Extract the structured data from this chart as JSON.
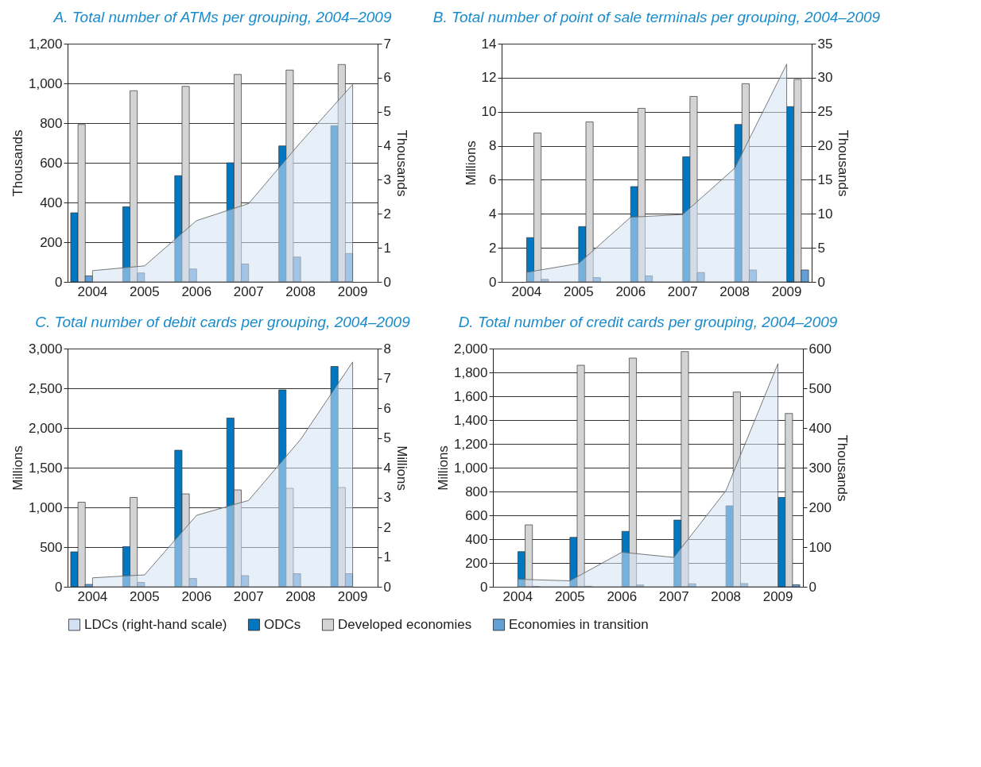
{
  "chart_data": [
    {
      "type": "bar",
      "title": "A. Total number of ATMs per grouping, 2004–2009",
      "categories": [
        "2004",
        "2005",
        "2006",
        "2007",
        "2008",
        "2009"
      ],
      "ylabel": "Thousands",
      "y2label": "Thousands",
      "ylim": [
        0,
        1200
      ],
      "yticks": [
        0,
        200,
        400,
        600,
        800,
        {
          "value": 1000,
          "label": "1,000"
        },
        {
          "value": 1200,
          "label": "1,200"
        }
      ],
      "y2lim": [
        0,
        7
      ],
      "y2ticks": [
        0,
        1,
        2,
        3,
        4,
        5,
        6,
        7
      ],
      "grid": "y",
      "legend": "bottom",
      "series": [
        {
          "name": "LDCs (right-hand scale)",
          "type": "area",
          "axis": "y2",
          "color": "#d4e1f4",
          "values": [
            0.33,
            0.47,
            1.8,
            2.3,
            4.1,
            5.8
          ]
        },
        {
          "name": "ODCs",
          "color": "#0077c0",
          "values": [
            348,
            378,
            535,
            600,
            685,
            787
          ]
        },
        {
          "name": "Developed economies",
          "color": "#d3d4d6",
          "values": [
            793,
            963,
            985,
            1045,
            1067,
            1095
          ]
        },
        {
          "name": "Economies in transition",
          "color": "#64a0d8",
          "values": [
            30,
            45,
            65,
            90,
            125,
            143
          ]
        }
      ]
    },
    {
      "type": "bar",
      "title": "B. Total number of point of sale terminals per grouping, 2004–2009",
      "categories": [
        "2004",
        "2005",
        "2006",
        "2007",
        "2008",
        "2009"
      ],
      "ylabel": "Millions",
      "y2label": "Thousands",
      "ylim": [
        0,
        14
      ],
      "yticks": [
        0,
        2,
        4,
        6,
        8,
        10,
        12,
        14
      ],
      "y2lim": [
        0,
        35
      ],
      "y2ticks": [
        0,
        5,
        10,
        15,
        20,
        25,
        30,
        35
      ],
      "grid": "y",
      "series": [
        {
          "type": "area",
          "axis": "y2",
          "color": "#d4e1f4",
          "values": [
            1.4,
            2.7,
            9.5,
            9.9,
            16.7,
            32
          ]
        },
        {
          "color": "#0077c0",
          "values": [
            2.6,
            3.25,
            5.6,
            7.35,
            9.25,
            10.3
          ]
        },
        {
          "color": "#d3d4d6",
          "values": [
            8.75,
            9.4,
            10.2,
            10.9,
            11.65,
            11.9
          ]
        },
        {
          "color": "#64a0d8",
          "values": [
            0.15,
            0.25,
            0.35,
            0.55,
            0.7,
            0.7
          ]
        }
      ]
    },
    {
      "type": "bar",
      "title": "C. Total number of debit cards per grouping, 2004–2009",
      "categories": [
        "2004",
        "2005",
        "2006",
        "2007",
        "2008",
        "2009"
      ],
      "ylabel": "Millions",
      "y2label": "Millions",
      "ylim": [
        0,
        3000
      ],
      "yticks": [
        0,
        500,
        {
          "value": 1000,
          "label": "1,000"
        },
        {
          "value": 1500,
          "label": "1,500"
        },
        {
          "value": 2000,
          "label": "2,000"
        },
        {
          "value": 2500,
          "label": "2,500"
        },
        {
          "value": 3000,
          "label": "3,000"
        }
      ],
      "y2lim": [
        0,
        8
      ],
      "y2ticks": [
        0,
        1,
        2,
        3,
        4,
        5,
        6,
        7,
        8
      ],
      "grid": "y",
      "series": [
        {
          "type": "area",
          "axis": "y2",
          "color": "#d4e1f4",
          "values": [
            0.3,
            0.4,
            2.4,
            2.9,
            4.95,
            7.55
          ]
        },
        {
          "color": "#0077c0",
          "values": [
            440,
            505,
            1720,
            2125,
            2480,
            2775
          ]
        },
        {
          "color": "#d3d4d6",
          "values": [
            1065,
            1125,
            1170,
            1220,
            1240,
            1250
          ]
        },
        {
          "color": "#64a0d8",
          "values": [
            30,
            55,
            105,
            140,
            165,
            165
          ]
        }
      ]
    },
    {
      "type": "bar",
      "title": "D. Total number of credit cards per grouping, 2004–2009",
      "categories": [
        "2004",
        "2005",
        "2006",
        "2007",
        "2008",
        "2009"
      ],
      "ylabel": "Millions",
      "y2label": "Thousands",
      "ylim": [
        0,
        2000
      ],
      "yticks": [
        0,
        200,
        400,
        600,
        800,
        {
          "value": 1000,
          "label": "1,000"
        },
        {
          "value": 1200,
          "label": "1,200"
        },
        {
          "value": 1400,
          "label": "1,400"
        },
        {
          "value": 1600,
          "label": "1,600"
        },
        {
          "value": 1800,
          "label": "1,800"
        },
        {
          "value": 2000,
          "label": "2,000"
        }
      ],
      "y2lim": [
        0,
        600
      ],
      "y2ticks": [
        0,
        100,
        200,
        300,
        400,
        500,
        600
      ],
      "grid": "y",
      "series": [
        {
          "type": "area",
          "axis": "y2",
          "color": "#d4e1f4",
          "values": [
            19,
            15,
            87,
            74,
            242,
            562
          ]
        },
        {
          "color": "#0077c0",
          "values": [
            295,
            415,
            465,
            560,
            680,
            750
          ]
        },
        {
          "color": "#d3d4d6",
          "values": [
            520,
            1860,
            1920,
            1975,
            1635,
            1455
          ]
        },
        {
          "color": "#64a0d8",
          "values": [
            3,
            5,
            15,
            25,
            27,
            17
          ]
        }
      ]
    }
  ]
}
